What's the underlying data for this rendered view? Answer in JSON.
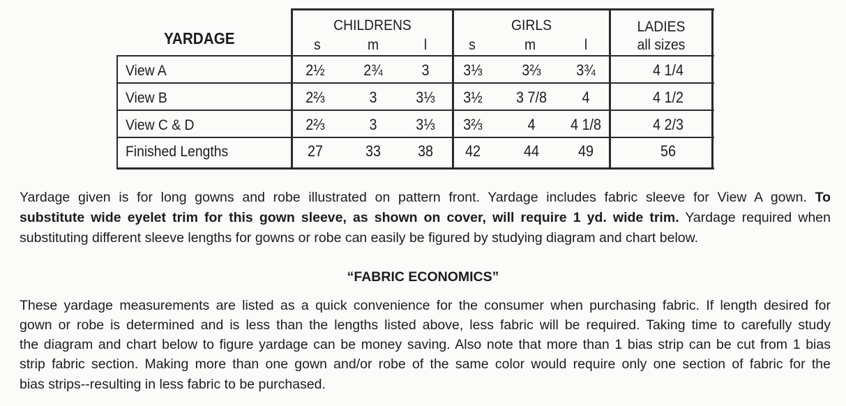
{
  "table": {
    "title": "YARDAGE",
    "groups": [
      {
        "label": "CHILDRENS",
        "sizes": [
          "s",
          "m",
          "l"
        ]
      },
      {
        "label": "GIRLS",
        "sizes": [
          "s",
          "m",
          "l"
        ]
      },
      {
        "label": "LADIES",
        "sizes": [
          "all sizes"
        ]
      }
    ],
    "rows": [
      {
        "label": "View A",
        "values": [
          "2½",
          "2¾",
          "3",
          "3⅓",
          "3⅔",
          "3¾",
          "4 1/4"
        ]
      },
      {
        "label": "View B",
        "values": [
          "2⅔",
          "3",
          "3⅓",
          "3½",
          "3 7/8",
          "4",
          "4 1/2"
        ]
      },
      {
        "label": "View C & D",
        "values": [
          "2⅔",
          "3",
          "3⅓",
          "3⅔",
          "4",
          "4 1/8",
          "4 2/3"
        ]
      },
      {
        "label": "Finished Lengths",
        "values": [
          "27",
          "33",
          "38",
          "42",
          "44",
          "49",
          "56"
        ]
      }
    ]
  },
  "paragraph1": {
    "l1a": "Yardage given is for long gowns and robe illustrated on pattern front. Yardage includes fabric sleeve for View A gown.",
    "l1b": "To",
    "l2a": "substitute wide eyelet trim for this gown sleeve, as shown on cover, will require 1 yd. wide trim.",
    "l2b": "Yardage required when",
    "l3": "substituting different sleeve lengths for gowns or robe can easily be figured by studying diagram and chart below."
  },
  "heading": "“FABRIC ECONOMICS”",
  "paragraph2": [
    "These yardage measurements are listed as a quick convenience for the consumer when purchasing fabric. If length desired for",
    "gown or robe is determined and is less than the lengths listed above, less fabric will be required. Taking time to carefully study",
    "the diagram and chart below to figure yardage can be money saving. Also note that more than 1 bias strip can be cut from 1 bias",
    "strip fabric section. Making more than one gown and/or robe of the same color would require only one section of fabric for the",
    "bias strips--resulting in less fabric to be purchased."
  ]
}
